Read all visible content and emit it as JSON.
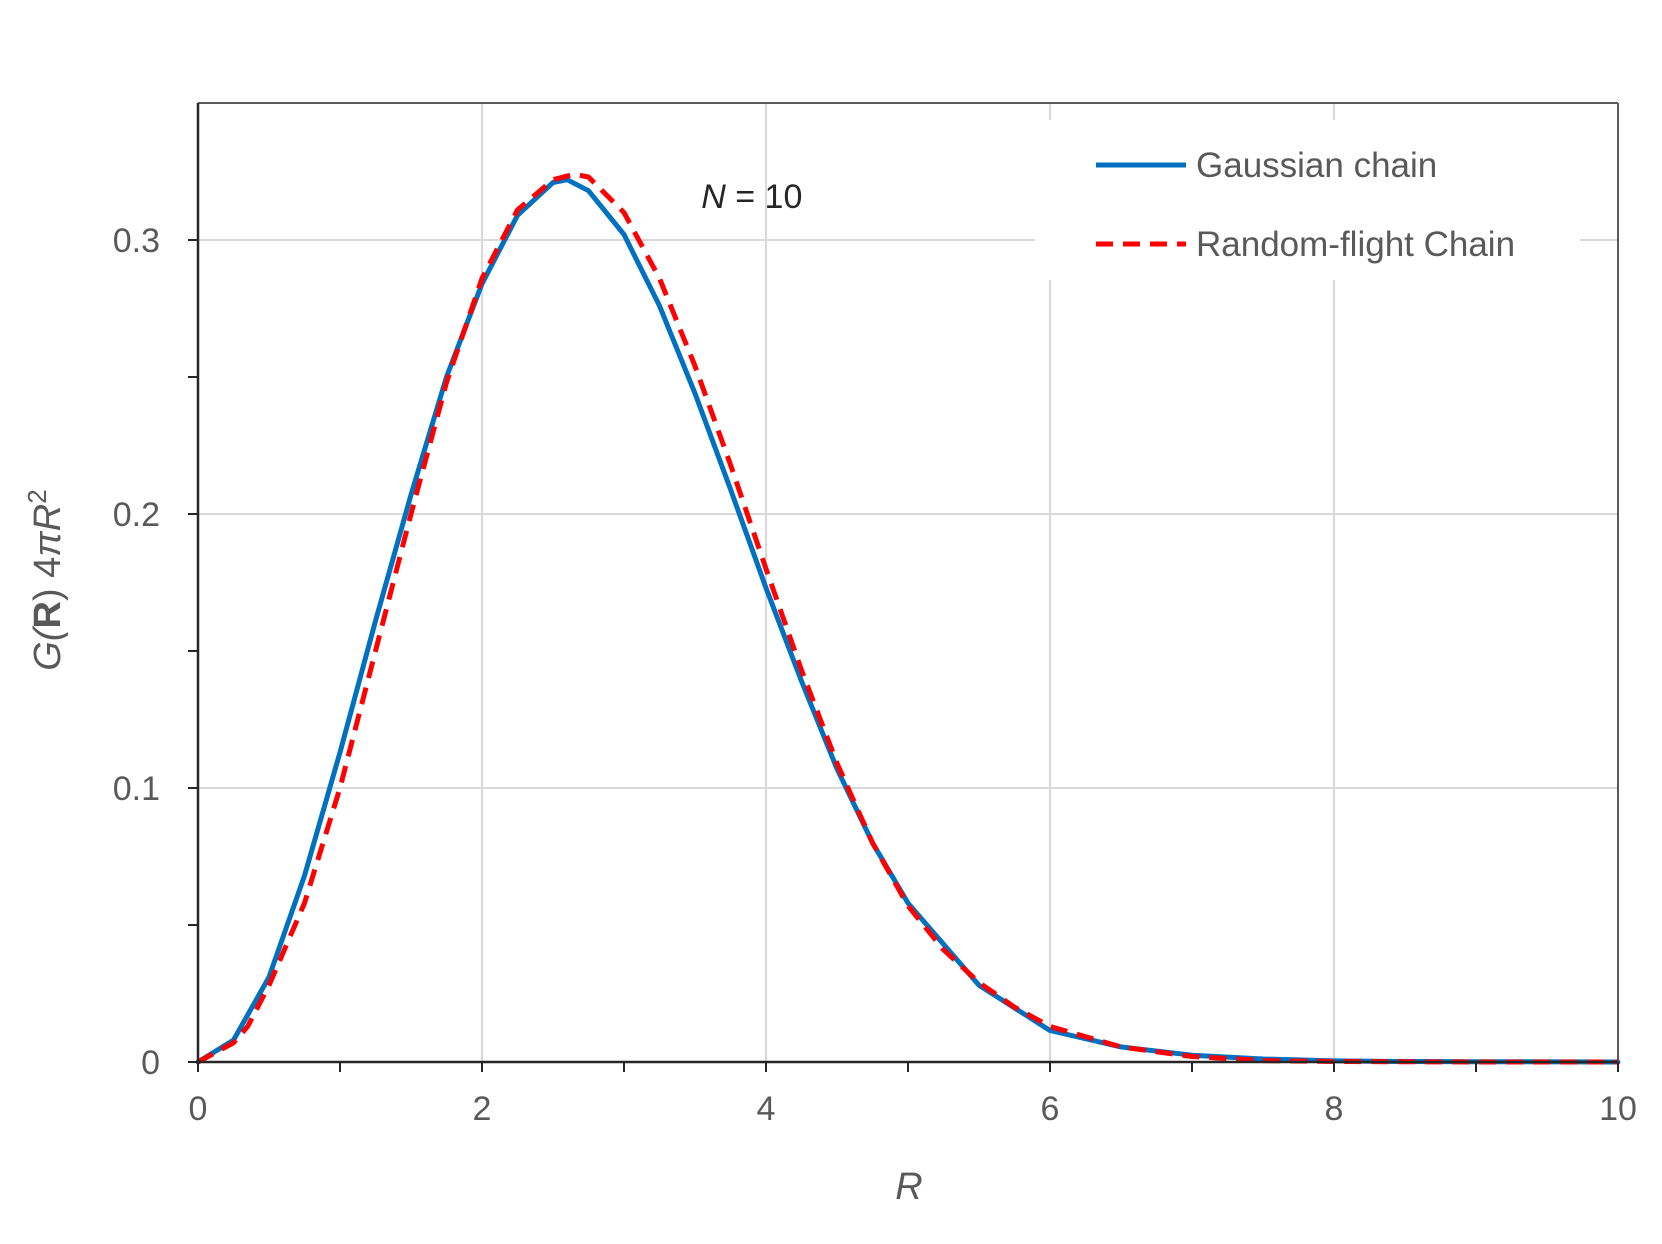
{
  "chart_data": {
    "type": "line",
    "title": "",
    "xlabel": "R",
    "ylabel": {
      "prefix": "G(",
      "bold": "R",
      "middle": ") 4",
      "pi": "π",
      "var": "R",
      "sup": "2"
    },
    "xlim": [
      0,
      10
    ],
    "ylim": [
      0,
      0.35
    ],
    "x_ticks": [
      0,
      2,
      4,
      6,
      8,
      10
    ],
    "x_tick_labels": [
      "0",
      "2",
      "4",
      "6",
      "8",
      "10"
    ],
    "x_minor_ticks": [
      1,
      3,
      5,
      7,
      9
    ],
    "y_ticks": [
      0,
      0.1,
      0.2,
      0.3
    ],
    "y_tick_labels": [
      "0",
      "0.1",
      "0.2",
      "0.3"
    ],
    "y_minor_ticks": [
      0.05,
      0.15,
      0.25
    ],
    "grid": true,
    "legend_position": "top-right",
    "annotation": {
      "var": "N",
      "rest": " = 10",
      "x": 3.9,
      "y": 0.316
    },
    "series": [
      {
        "name": "Gaussian chain",
        "color": "#0070C0",
        "style": "solid",
        "x": [
          0,
          0.25,
          0.5,
          0.75,
          1.0,
          1.25,
          1.5,
          1.75,
          2.0,
          2.25,
          2.5,
          2.6,
          2.75,
          3.0,
          3.25,
          3.5,
          3.75,
          4.0,
          4.25,
          4.5,
          4.75,
          5.0,
          5.5,
          6.0,
          6.5,
          7.0,
          7.5,
          8.0,
          8.5,
          9.0,
          10.0
        ],
        "y": [
          0,
          0.008,
          0.031,
          0.068,
          0.113,
          0.161,
          0.207,
          0.25,
          0.284,
          0.309,
          0.321,
          0.322,
          0.318,
          0.302,
          0.276,
          0.244,
          0.209,
          0.173,
          0.139,
          0.107,
          0.08,
          0.058,
          0.028,
          0.0115,
          0.0055,
          0.0025,
          0.0011,
          0.0004,
          0.0002,
          0.0001,
          0.0
        ]
      },
      {
        "name": "Random-flight Chain",
        "color": "#FF0000",
        "style": "dashed",
        "x": [
          0,
          0.25,
          0.35,
          0.5,
          0.75,
          1.0,
          1.25,
          1.5,
          1.75,
          2.0,
          2.25,
          2.5,
          2.65,
          2.75,
          3.0,
          3.25,
          3.5,
          3.75,
          4.0,
          4.25,
          4.5,
          4.75,
          5.0,
          5.25,
          5.5,
          5.75,
          6.0,
          6.5,
          7.0,
          7.5,
          8.0,
          9.0,
          10.0
        ],
        "y": [
          0,
          0.007,
          0.013,
          0.028,
          0.058,
          0.1,
          0.15,
          0.2,
          0.248,
          0.286,
          0.311,
          0.322,
          0.324,
          0.323,
          0.31,
          0.286,
          0.254,
          0.218,
          0.18,
          0.143,
          0.109,
          0.08,
          0.057,
          0.041,
          0.029,
          0.02,
          0.013,
          0.0055,
          0.002,
          0.0005,
          0.0002,
          0.0,
          0.0
        ]
      }
    ]
  }
}
